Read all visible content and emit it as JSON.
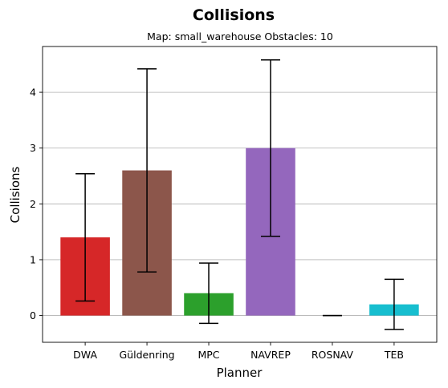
{
  "chart_data": {
    "type": "bar",
    "title": "Collisions",
    "subtitle": "Map: small_warehouse Obstacles: 10",
    "xlabel": "Planner",
    "ylabel": "Collisions",
    "categories": [
      "DWA",
      "Güldenring",
      "MPC",
      "NAVREP",
      "ROSNAV",
      "TEB"
    ],
    "values": [
      1.4,
      2.6,
      0.4,
      3.0,
      0.0,
      0.2
    ],
    "error": [
      1.14,
      1.82,
      0.54,
      1.58,
      0.0,
      0.45
    ],
    "colors": [
      "#d62728",
      "#8c564b",
      "#2ca02c",
      "#9467bd",
      "#e377c2",
      "#17becf"
    ],
    "ylim": [
      -0.48,
      4.82
    ],
    "yticks": [
      0,
      1,
      2,
      3,
      4
    ],
    "grid": "y"
  }
}
